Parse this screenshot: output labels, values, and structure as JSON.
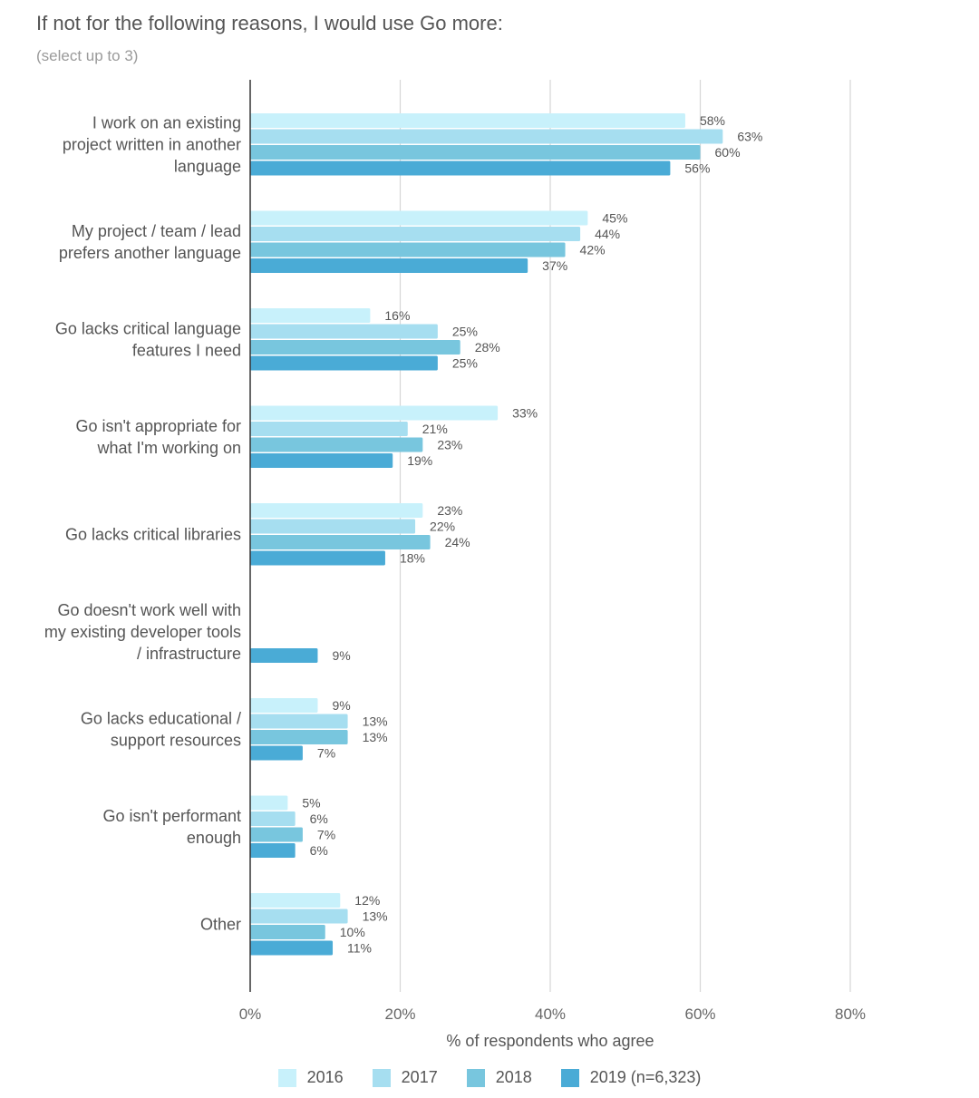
{
  "chart_data": {
    "type": "bar",
    "orientation": "horizontal",
    "title": "If not for the following reasons, I would use Go more:",
    "subtitle": "(select up to 3)",
    "xlabel": "% of respondents who agree",
    "xlim": [
      0,
      80
    ],
    "xticks": [
      "0%",
      "20%",
      "40%",
      "60%",
      "80%"
    ],
    "grid": true,
    "legend_position": "bottom",
    "categories": [
      [
        "I work on an existing",
        "project written in another",
        "language"
      ],
      [
        "My project / team / lead",
        "prefers another language"
      ],
      [
        "Go lacks critical language",
        "features I need"
      ],
      [
        "Go isn't appropriate for",
        "what I'm working on"
      ],
      [
        "Go lacks critical libraries"
      ],
      [
        "Go doesn't work well with",
        "my existing developer tools",
        "/ infrastructure"
      ],
      [
        "Go lacks educational /",
        "support resources"
      ],
      [
        "Go isn't performant",
        "enough"
      ],
      [
        "Other"
      ]
    ],
    "series": [
      {
        "name": "2016",
        "color": "#c8f1fb",
        "values": [
          58,
          45,
          16,
          33,
          23,
          null,
          9,
          5,
          12
        ]
      },
      {
        "name": "2017",
        "color": "#a6def0",
        "values": [
          63,
          44,
          25,
          21,
          22,
          null,
          13,
          6,
          13
        ]
      },
      {
        "name": "2018",
        "color": "#78c6de",
        "values": [
          60,
          42,
          28,
          23,
          24,
          null,
          13,
          7,
          10
        ]
      },
      {
        "name": "2019 (n=6,323)",
        "color": "#4aabd6",
        "values": [
          56,
          37,
          25,
          19,
          18,
          9,
          7,
          6,
          11
        ]
      }
    ]
  }
}
